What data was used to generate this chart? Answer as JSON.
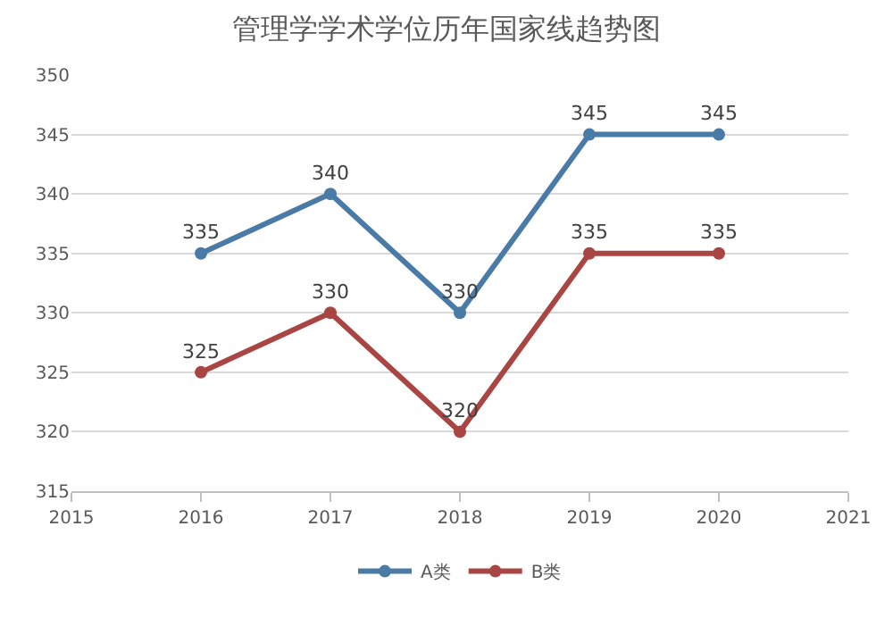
{
  "chart_data": {
    "type": "line",
    "title": "管理学学术学位历年国家线趋势图",
    "x": [
      2016,
      2017,
      2018,
      2019,
      2020
    ],
    "series": [
      {
        "name": "A类",
        "color": "#4a7ba7",
        "values": [
          335,
          340,
          330,
          345,
          345
        ]
      },
      {
        "name": "B类",
        "color": "#a94543",
        "values": [
          325,
          330,
          320,
          335,
          335
        ]
      }
    ],
    "xlim": [
      2015,
      2021
    ],
    "xticks": [
      2015,
      2016,
      2017,
      2018,
      2019,
      2020,
      2021
    ],
    "ylim": [
      315,
      350
    ],
    "yticks": [
      315,
      320,
      325,
      330,
      335,
      340,
      345,
      350
    ],
    "grid": "y",
    "legend": "bottom",
    "marker": "circle",
    "line_style": "solid",
    "data_labels": true
  }
}
